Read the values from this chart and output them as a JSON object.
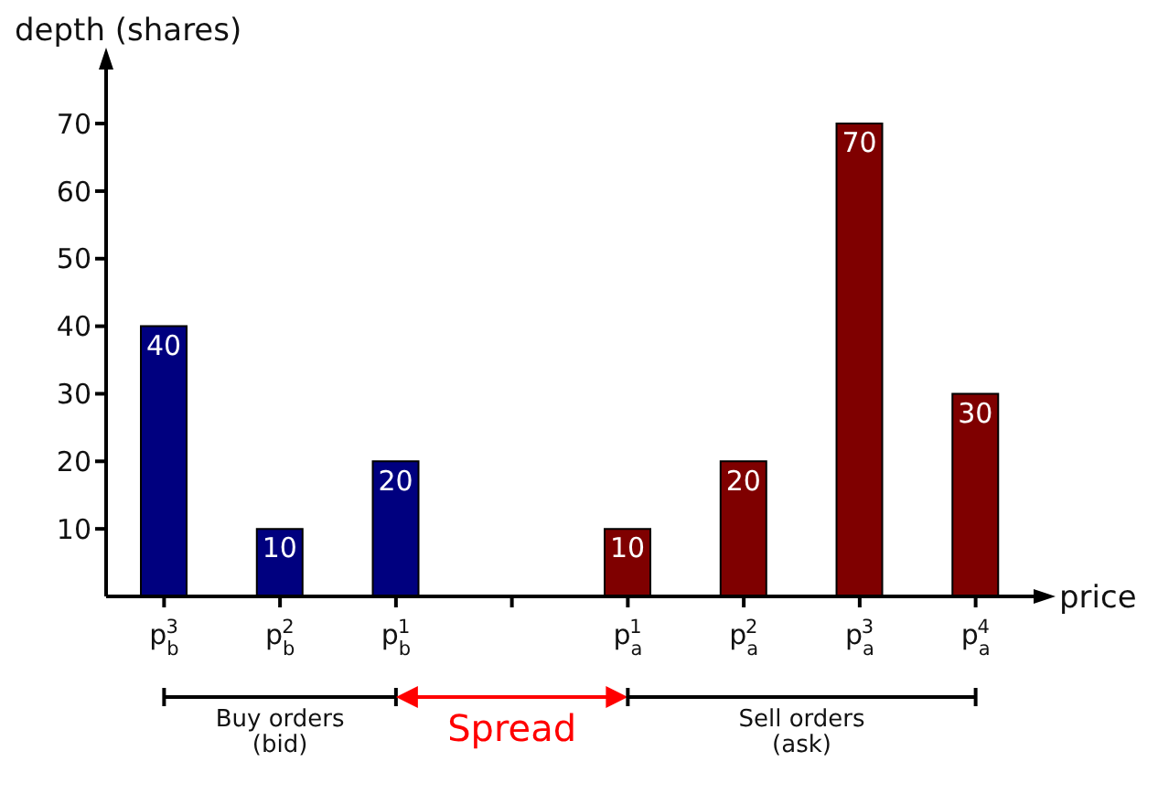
{
  "chart_data": {
    "type": "bar",
    "xlabel": "price",
    "ylabel": "depth (shares)",
    "categories": [
      "p$_{b}$$^{3}$",
      "p$_{b}$$^{2}$",
      "p$_{b}$$^{1}$",
      null,
      "p$_{a}$$^{1}$",
      "p$_{a}$$^{2}$",
      "p$_{a}$$^{3}$",
      "p$_{a}$$^{4}$"
    ],
    "values": [
      40,
      10,
      20,
      null,
      10,
      20,
      70,
      30
    ],
    "colors": [
      "#00007f",
      "#00007f",
      "#00007f",
      "#00007f",
      "#7f0000",
      "#7f0000",
      "#7f0000",
      "#7f0000"
    ],
    "ylim": [
      0,
      78
    ],
    "yticks": [
      10,
      20,
      30,
      40,
      50,
      60,
      70
    ],
    "grid": false,
    "legend": false,
    "data_labels": true,
    "annotations": [
      "Buy orders (bid)",
      "Spread",
      "Sell orders (ask)"
    ]
  }
}
